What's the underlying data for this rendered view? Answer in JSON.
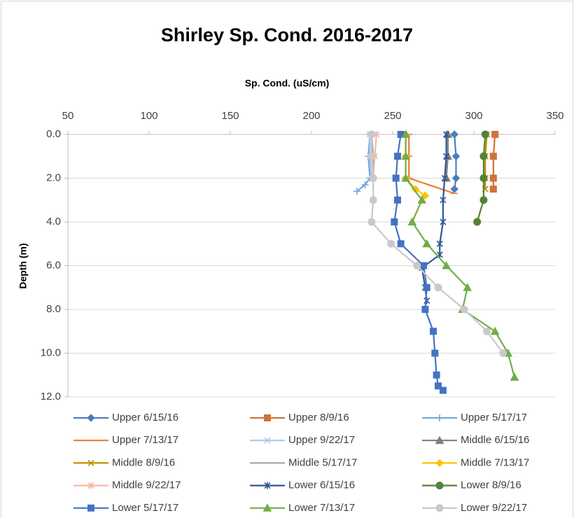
{
  "chart_data": {
    "type": "line",
    "title": "Shirley Sp. Cond. 2016-2017",
    "x_label": "Sp. Cond. (uS/cm)",
    "y_label": "Depth (m)",
    "xlim": [
      50,
      350
    ],
    "xticks": [
      50,
      100,
      150,
      200,
      250,
      300,
      350
    ],
    "ylim": [
      0,
      12
    ],
    "y_inverted": true,
    "yticks": [
      {
        "value": 0,
        "label": "0.0"
      },
      {
        "value": 2,
        "label": "2.0"
      },
      {
        "value": 4,
        "label": "4.0"
      },
      {
        "value": 6,
        "label": "6.0"
      },
      {
        "value": 8,
        "label": "8.0"
      },
      {
        "value": 10,
        "label": "10.0"
      },
      {
        "value": 12,
        "label": "12.0"
      }
    ],
    "grid": true,
    "legend": "bottom",
    "series": [
      {
        "name": "Upper 6/15/16",
        "color": "#4a7ebb",
        "marker": "diamond",
        "x": [
          288,
          289,
          289,
          288
        ],
        "y": [
          0,
          1,
          2,
          2.5
        ]
      },
      {
        "name": "Upper 8/9/16",
        "color": "#d0723a",
        "marker": "square",
        "x": [
          313,
          312,
          312,
          312
        ],
        "y": [
          0,
          1,
          2,
          2.5
        ]
      },
      {
        "name": "Upper 5/17/17",
        "color": "#6fa8dc",
        "marker": "plus",
        "x": [
          236,
          235,
          236,
          233,
          228
        ],
        "y": [
          0,
          1,
          2,
          2.3,
          2.6
        ]
      },
      {
        "name": "Upper 7/13/17",
        "color": "#ed7d31",
        "marker": "dash",
        "x": [
          260,
          260,
          260,
          288
        ],
        "y": [
          0,
          1,
          2,
          2.7
        ]
      },
      {
        "name": "Upper 9/22/17",
        "color": "#a9c8ea",
        "marker": "x",
        "x": [
          236,
          236,
          237
        ],
        "y": [
          0,
          1,
          2
        ]
      },
      {
        "name": "Middle 6/15/16",
        "color": "#7f7f7f",
        "marker": "triangle",
        "x": [
          284,
          284,
          283
        ],
        "y": [
          0,
          1,
          2
        ]
      },
      {
        "name": "Middle 8/9/16",
        "color": "#bf9000",
        "marker": "x",
        "x": [
          308,
          307,
          307,
          307
        ],
        "y": [
          0,
          1,
          2,
          2.5
        ]
      },
      {
        "name": "Middle 5/17/17",
        "color": "#a5a5a5",
        "marker": "dash",
        "x": [
          237,
          238,
          238
        ],
        "y": [
          0,
          1,
          2
        ]
      },
      {
        "name": "Middle 7/13/17",
        "color": "#ffc000",
        "marker": "diamond",
        "x": [
          258,
          258,
          258,
          264,
          270
        ],
        "y": [
          0,
          1,
          2,
          2.5,
          2.8
        ]
      },
      {
        "name": "Middle 9/22/17",
        "color": "#f4b9a6",
        "marker": "asterisk",
        "x": [
          240,
          239,
          238
        ],
        "y": [
          0,
          1,
          2
        ]
      },
      {
        "name": "Lower 6/15/16",
        "color": "#2f5597",
        "marker": "asterisk",
        "x": [
          283,
          283,
          282,
          281,
          281,
          279,
          279,
          268,
          270,
          271
        ],
        "y": [
          0,
          1,
          2,
          3,
          4,
          5,
          5.5,
          6.1,
          7,
          7.6
        ]
      },
      {
        "name": "Lower 8/9/16",
        "color": "#548235",
        "marker": "circle",
        "x": [
          307,
          306,
          306,
          306,
          302
        ],
        "y": [
          0,
          1,
          2,
          3,
          4
        ]
      },
      {
        "name": "Lower 5/17/17",
        "color": "#4472c4",
        "marker": "square",
        "x": [
          255,
          253,
          252,
          253,
          251,
          255,
          269,
          271,
          270,
          275,
          276,
          277,
          278,
          281
        ],
        "y": [
          0,
          1,
          2,
          3,
          4,
          5,
          6,
          7,
          8,
          9,
          10,
          11,
          11.5,
          11.7
        ]
      },
      {
        "name": "Lower 7/13/17",
        "color": "#70ad47",
        "marker": "triangle",
        "x": [
          258,
          258,
          258,
          268,
          262,
          271,
          283,
          296,
          293,
          313,
          321,
          325
        ],
        "y": [
          0,
          1,
          2,
          3,
          4,
          5,
          6,
          7,
          8,
          9,
          10,
          11.1
        ]
      },
      {
        "name": "Lower 9/22/17",
        "color": "#c9c9c9",
        "marker": "circle",
        "x": [
          237,
          237,
          238,
          238,
          237,
          249,
          265,
          278,
          294,
          308,
          318
        ],
        "y": [
          0,
          1,
          2,
          3,
          4,
          5,
          6,
          7,
          8,
          9,
          10
        ]
      }
    ]
  }
}
